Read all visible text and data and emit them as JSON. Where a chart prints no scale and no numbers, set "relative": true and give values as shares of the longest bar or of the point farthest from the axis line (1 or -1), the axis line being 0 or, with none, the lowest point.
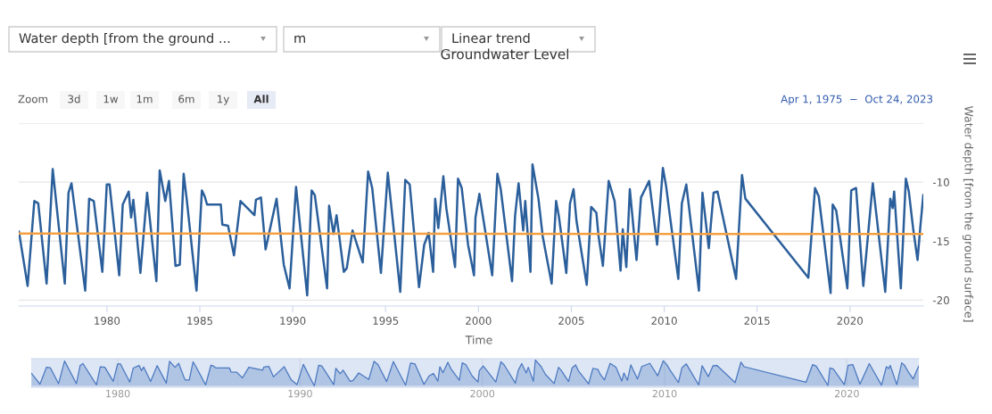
{
  "chart_data": [
    {
      "type": "line",
      "title": "Groundwater Level",
      "xlabel": "Time",
      "ylabel": "Water depth [from the ground surface]",
      "annotations": [
        "Water depth [from the ground ...",
        "m",
        "Linear trend",
        "Zoom",
        "3d",
        "1w",
        "1m",
        "6m",
        "1y",
        "All",
        "Apr 1, 1975  −  Oct 24, 2023"
      ],
      "xlim": [
        1975.25,
        2023.95
      ],
      "xticks": [
        1980,
        1985,
        1990,
        1995,
        2000,
        2005,
        2010,
        2015,
        2020
      ],
      "ylim": [
        -20.5,
        -5
      ],
      "yticks": [
        {
          "value": -5,
          "label": null
        },
        -10,
        -15,
        -20
      ],
      "grid": "y",
      "legend": false,
      "marker": "none",
      "line_style": "solid",
      "series": [
        {
          "color": "#2b5f9b",
          "x": [
            1975.26,
            1975.73,
            1976.09,
            1976.3,
            1976.75,
            1977.08,
            1977.73,
            1977.93,
            1978.09,
            1978.83,
            1979.04,
            1979.29,
            1979.75,
            1979.99,
            1980.14,
            1980.66,
            1980.85,
            1981.17,
            1981.3,
            1981.42,
            1981.8,
            1982.16,
            1982.66,
            1982.84,
            1983.14,
            1983.34,
            1983.69,
            1983.92,
            1984.13,
            1984.29,
            1984.82,
            1985.11,
            1985.26,
            1985.39,
            1986.13,
            1986.21,
            1986.52,
            1986.84,
            1987.19,
            1987.94,
            1988.02,
            1988.29,
            1988.54,
            1989.13,
            1989.52,
            1989.83,
            1990.18,
            1990.78,
            1991.02,
            1991.19,
            1991.85,
            1991.96,
            1992.2,
            1992.36,
            1992.75,
            1992.91,
            1993.22,
            1993.77,
            1994.06,
            1994.28,
            1994.75,
            1995.12,
            1995.79,
            1996.06,
            1996.3,
            1996.8,
            1997.08,
            1997.32,
            1997.56,
            1997.67,
            1997.84,
            1998.11,
            1998.27,
            1998.74,
            1998.9,
            1999.1,
            1999.44,
            1999.76,
            1999.84,
            2000.05,
            2000.74,
            2001.02,
            2001.2,
            2001.81,
            2001.97,
            2002.16,
            2002.41,
            2002.52,
            2002.8,
            2002.91,
            2003.23,
            2003.46,
            2003.94,
            2004.18,
            2004.33,
            2004.73,
            2004.93,
            2005.12,
            2005.28,
            2005.83,
            2006.07,
            2006.35,
            2006.46,
            2006.7,
            2007.01,
            2007.33,
            2007.65,
            2007.77,
            2007.96,
            2008.15,
            2008.51,
            2008.75,
            2009.19,
            2009.62,
            2009.93,
            2010.1,
            2010.32,
            2010.76,
            2010.95,
            2011.19,
            2011.87,
            2012.06,
            2012.4,
            2012.66,
            2012.87,
            2013.87,
            2014.19,
            2014.37,
            2017.76,
            2018.12,
            2018.32,
            2018.96,
            2019.07,
            2019.26,
            2019.86,
            2020.07,
            2020.33,
            2020.72,
            2021.23,
            2021.9,
            2022.17,
            2022.3,
            2022.38,
            2022.74,
            2023.01,
            2023.17,
            2023.4,
            2023.64,
            2023.8,
            2023.95
          ],
          "values": [
            -14.2,
            -18.8,
            -11.6,
            -11.8,
            -18.6,
            -8.9,
            -18.6,
            -10.9,
            -10.1,
            -19.2,
            -11.4,
            -11.6,
            -17.6,
            -10.2,
            -10.2,
            -17.9,
            -11.9,
            -10.8,
            -13.0,
            -11.5,
            -17.7,
            -10.9,
            -18.4,
            -9.0,
            -11.6,
            -9.9,
            -17.1,
            -17.0,
            -9.3,
            -11.4,
            -19.2,
            -10.7,
            -11.2,
            -11.9,
            -11.9,
            -13.6,
            -13.7,
            -16.2,
            -11.6,
            -12.8,
            -11.5,
            -11.3,
            -15.7,
            -11.4,
            -17.0,
            -19.0,
            -10.4,
            -19.6,
            -10.7,
            -11.1,
            -19.0,
            -12.0,
            -14.4,
            -12.8,
            -17.6,
            -17.3,
            -14.1,
            -16.8,
            -9.1,
            -10.5,
            -17.7,
            -9.2,
            -19.3,
            -9.8,
            -10.2,
            -18.9,
            -15.3,
            -14.3,
            -17.6,
            -11.4,
            -13.9,
            -9.5,
            -12.2,
            -17.2,
            -9.7,
            -10.5,
            -15.3,
            -17.9,
            -13.0,
            -11.0,
            -17.9,
            -9.3,
            -10.6,
            -18.4,
            -12.9,
            -10.1,
            -14.1,
            -11.6,
            -17.6,
            -8.5,
            -11.4,
            -14.6,
            -18.6,
            -11.6,
            -12.9,
            -17.7,
            -11.8,
            -10.6,
            -13.3,
            -18.7,
            -12.1,
            -12.6,
            -14.5,
            -17.1,
            -9.9,
            -11.6,
            -17.5,
            -14.0,
            -17.2,
            -10.6,
            -16.6,
            -11.3,
            -9.9,
            -15.3,
            -8.8,
            -10.3,
            -13.0,
            -18.2,
            -11.8,
            -10.2,
            -19.2,
            -10.9,
            -15.6,
            -10.9,
            -10.8,
            -18.2,
            -9.4,
            -11.4,
            -18.1,
            -10.5,
            -11.2,
            -19.4,
            -11.9,
            -12.4,
            -19.0,
            -10.7,
            -10.5,
            -18.8,
            -10.1,
            -19.3,
            -11.4,
            -12.2,
            -10.8,
            -19.0,
            -9.7,
            -10.8,
            -13.9,
            -16.6,
            -13.6,
            -11.1
          ]
        },
        {
          "type": "line",
          "color": "#f5a040",
          "x": [
            1975.25,
            2023.95
          ],
          "values": [
            -14.35,
            -14.4
          ]
        }
      ]
    },
    {
      "type": "area",
      "relative": true,
      "xlim": [
        1975.25,
        2023.95
      ],
      "xticks": [
        1980,
        1990,
        2000,
        2010,
        2020
      ],
      "tick_labels": "x",
      "grid": "x",
      "series": [
        {
          "color": "#4a78c0",
          "x": [
            1975.26,
            1975.73,
            1976.09,
            1976.3,
            1976.75,
            1977.08,
            1977.73,
            1977.93,
            1978.09,
            1978.83,
            1979.04,
            1979.29,
            1979.75,
            1979.99,
            1980.14,
            1980.66,
            1980.85,
            1981.17,
            1981.3,
            1981.42,
            1981.8,
            1982.16,
            1982.66,
            1982.84,
            1983.14,
            1983.34,
            1983.69,
            1983.92,
            1984.13,
            1984.29,
            1984.82,
            1985.11,
            1985.26,
            1985.39,
            1986.13,
            1986.21,
            1986.52,
            1986.84,
            1987.19,
            1987.94,
            1988.02,
            1988.29,
            1988.54,
            1989.13,
            1989.52,
            1989.83,
            1990.18,
            1990.78,
            1991.02,
            1991.19,
            1991.85,
            1991.96,
            1992.2,
            1992.36,
            1992.75,
            1992.91,
            1993.22,
            1993.77,
            1994.06,
            1994.28,
            1994.75,
            1995.12,
            1995.79,
            1996.06,
            1996.3,
            1996.8,
            1997.08,
            1997.32,
            1997.56,
            1997.67,
            1997.84,
            1998.11,
            1998.27,
            1998.74,
            1998.9,
            1999.1,
            1999.44,
            1999.76,
            1999.84,
            2000.05,
            2000.74,
            2001.02,
            2001.2,
            2001.81,
            2001.97,
            2002.16,
            2002.41,
            2002.52,
            2002.8,
            2002.91,
            2003.23,
            2003.46,
            2003.94,
            2004.18,
            2004.33,
            2004.73,
            2004.93,
            2005.12,
            2005.28,
            2005.83,
            2006.07,
            2006.35,
            2006.46,
            2006.7,
            2007.01,
            2007.33,
            2007.65,
            2007.77,
            2007.96,
            2008.15,
            2008.51,
            2008.75,
            2009.19,
            2009.62,
            2009.93,
            2010.1,
            2010.32,
            2010.76,
            2010.95,
            2011.19,
            2011.87,
            2012.06,
            2012.4,
            2012.66,
            2012.87,
            2013.87,
            2014.19,
            2014.37,
            2017.76,
            2018.12,
            2018.32,
            2018.96,
            2019.07,
            2019.26,
            2019.86,
            2020.07,
            2020.33,
            2020.72,
            2021.23,
            2021.9,
            2022.17,
            2022.3,
            2022.38,
            2022.74,
            2023.01,
            2023.17,
            2023.4,
            2023.64,
            2023.8,
            2023.95
          ],
          "values": [
            0.49,
            0.07,
            0.72,
            0.7,
            0.09,
            0.96,
            0.09,
            0.78,
            0.86,
            0.04,
            0.74,
            0.72,
            0.18,
            0.85,
            0.85,
            0.15,
            0.69,
            0.79,
            0.59,
            0.73,
            0.17,
            0.78,
            0.11,
            0.95,
            0.72,
            0.87,
            0.23,
            0.23,
            0.93,
            0.74,
            0.04,
            0.8,
            0.76,
            0.69,
            0.69,
            0.54,
            0.53,
            0.31,
            0.72,
            0.61,
            0.73,
            0.75,
            0.35,
            0.74,
            0.23,
            0.05,
            0.83,
            0,
            0.8,
            0.77,
            0.05,
            0.68,
            0.47,
            0.61,
            0.18,
            0.21,
            0.5,
            0.25,
            0.95,
            0.82,
            0.17,
            0.94,
            0.03,
            0.88,
            0.85,
            0.06,
            0.39,
            0.48,
            0.18,
            0.74,
            0.51,
            0.91,
            0.67,
            0.22,
            0.89,
            0.82,
            0.39,
            0.15,
            0.59,
            0.77,
            0.15,
            0.93,
            0.81,
            0.11,
            0.6,
            0.86,
            0.5,
            0.72,
            0.18,
            1,
            0.74,
            0.45,
            0.09,
            0.72,
            0.6,
            0.17,
            0.7,
            0.81,
            0.57,
            0.08,
            0.68,
            0.63,
            0.46,
            0.23,
            0.87,
            0.72,
            0.19,
            0.5,
            0.22,
            0.81,
            0.27,
            0.75,
            0.87,
            0.39,
            0.97,
            0.84,
            0.59,
            0.13,
            0.7,
            0.85,
            0.04,
            0.78,
            0.36,
            0.78,
            0.79,
            0.13,
            0.92,
            0.74,
            0.14,
            0.82,
            0.76,
            0.02,
            0.69,
            0.65,
            0.05,
            0.8,
            0.82,
            0.07,
            0.86,
            0.03,
            0.74,
            0.67,
            0.79,
            0.05,
            0.89,
            0.79,
            0.51,
            0.27,
            0.54,
            0.77
          ]
        }
      ]
    }
  ]
}
